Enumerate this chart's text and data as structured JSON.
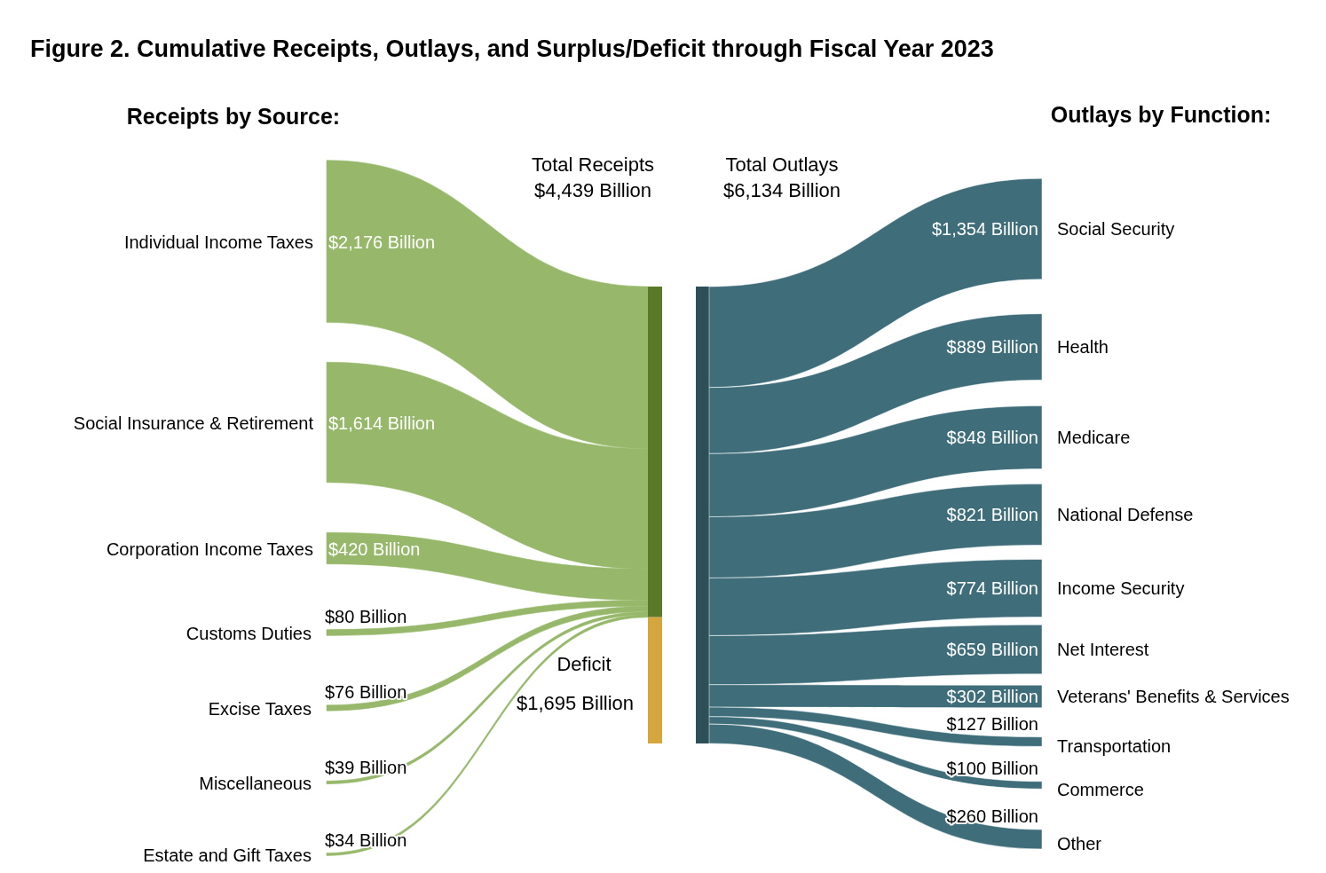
{
  "chart_data": {
    "type": "other",
    "title": "Figure 2. Cumulative Receipts, Outlays, and Surplus/Deficit through Fiscal Year 2023",
    "annotations": [
      "Receipts by Source:",
      "Outlays by Function:"
    ],
    "categories": [
      "Individual Income Taxes",
      "Social Insurance & Retirement",
      "Corporation Income Taxes",
      "Customs Duties",
      "Excise Taxes",
      "Miscellaneous",
      "Estate and Gift Taxes",
      "Total Receipts",
      "Deficit",
      "Total Outlays",
      "Social Security",
      "Health",
      "Medicare",
      "National Defense",
      "Income Security",
      "Net Interest",
      "Veterans' Benefits & Services",
      "Transportation",
      "Commerce",
      "Other"
    ],
    "values": [
      2176,
      1614,
      420,
      80,
      76,
      39,
      34,
      4439,
      1695,
      6134,
      1354,
      889,
      848,
      821,
      774,
      659,
      302,
      127,
      100,
      260
    ],
    "value_labels": [
      "$2,176 Billion",
      "$1,614 Billion",
      "$420 Billion",
      "$80 Billion",
      "$76 Billion",
      "$39 Billion",
      "$34 Billion",
      "$4,439 Billion",
      "$1,695 Billion",
      "$6,134 Billion",
      "$1,354 Billion",
      "$889 Billion",
      "$848 Billion",
      "$821 Billion",
      "$774 Billion",
      "$659 Billion",
      "$302 Billion",
      "$127 Billion",
      "$100 Billion",
      "$260 Billion"
    ],
    "colors": [
      "#97b86a",
      "#97b86a",
      "#97b86a",
      "#97b86a",
      "#97b86a",
      "#97b86a",
      "#97b86a",
      "#5a7a2a",
      "#d6a63e",
      "#2d4f57",
      "#3f6e7a",
      "#3f6e7a",
      "#3f6e7a",
      "#3f6e7a",
      "#3f6e7a",
      "#3f6e7a",
      "#3f6e7a",
      "#3f6e7a",
      "#3f6e7a",
      "#3f6e7a"
    ]
  }
}
